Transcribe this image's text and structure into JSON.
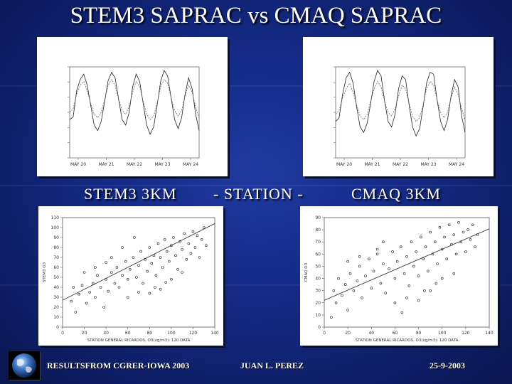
{
  "slide": {
    "title": "STEM3 SAPRAC vs CMAQ SAPRAC",
    "label_left": "STEM3 3KM",
    "label_center": "- STATION -",
    "label_right": "CMAQ 3KM"
  },
  "footer": {
    "left": "RESULTSFROM CGRER-IOWA 2003",
    "center": "JUAN L. PEREZ",
    "right": "25-9-2003"
  },
  "icons": {
    "logo": "earth-globe-icon"
  },
  "colors": {
    "background": "#142a86",
    "text": "#ffffff",
    "panel": "#ffffff",
    "plot_ink": "#333333"
  },
  "chart_data": [
    {
      "type": "line",
      "panel": "top-left",
      "x_ticks": [
        "MAY 20",
        "MAY 21",
        "MAY 22",
        "MAY 23",
        "MAY 24"
      ],
      "series": [
        {
          "values": [
            42,
            45,
            74,
            86,
            92,
            80,
            58,
            36,
            30,
            40,
            62,
            85,
            94,
            88,
            64,
            42,
            36,
            50,
            78,
            92,
            84,
            60,
            36,
            26,
            34,
            58,
            84,
            96,
            90,
            66,
            42,
            32,
            44,
            70,
            88,
            76,
            48,
            30
          ]
        },
        {
          "values": [
            50,
            54,
            70,
            80,
            84,
            74,
            60,
            48,
            44,
            50,
            64,
            80,
            86,
            80,
            64,
            52,
            48,
            56,
            72,
            84,
            78,
            62,
            48,
            42,
            46,
            60,
            78,
            86,
            82,
            66,
            52,
            46,
            52,
            68,
            80,
            72,
            56,
            44
          ]
        }
      ]
    },
    {
      "type": "line",
      "panel": "top-right",
      "x_ticks": [
        "MAY 20",
        "MAY 21",
        "MAY 22",
        "MAY 23",
        "MAY 24"
      ],
      "series": [
        {
          "values": [
            40,
            44,
            70,
            88,
            94,
            82,
            56,
            34,
            28,
            38,
            60,
            84,
            96,
            90,
            62,
            40,
            34,
            48,
            76,
            90,
            86,
            58,
            34,
            24,
            32,
            56,
            82,
            94,
            92,
            64,
            40,
            30,
            42,
            68,
            86,
            78,
            46,
            28
          ]
        },
        {
          "values": [
            48,
            52,
            66,
            76,
            82,
            72,
            58,
            46,
            42,
            48,
            62,
            76,
            84,
            78,
            62,
            50,
            46,
            54,
            68,
            80,
            76,
            60,
            46,
            40,
            44,
            58,
            76,
            84,
            80,
            64,
            50,
            44,
            50,
            66,
            78,
            70,
            54,
            42
          ]
        }
      ]
    },
    {
      "type": "scatter",
      "panel": "bottom-left",
      "xlabel": "STATION GENERAL RICARDOS, O3(ug/m3): 120 DATA",
      "ylabel": "STEM3 O3",
      "x_ticks": [
        "0",
        "20",
        "40",
        "60",
        "80",
        "100",
        "120",
        "140"
      ],
      "y_ticks": [
        "0",
        "10",
        "20",
        "30",
        "40",
        "50",
        "60",
        "70",
        "80",
        "90",
        "100",
        "110"
      ],
      "xlim": [
        0,
        140
      ],
      "ylim": [
        0,
        110
      ],
      "fit": {
        "slope": 0.55,
        "intercept": 27.0
      },
      "points": [
        [
          8,
          26
        ],
        [
          10,
          40
        ],
        [
          12,
          15
        ],
        [
          15,
          33
        ],
        [
          18,
          42
        ],
        [
          22,
          24
        ],
        [
          25,
          35
        ],
        [
          28,
          44
        ],
        [
          30,
          30
        ],
        [
          32,
          52
        ],
        [
          35,
          40
        ],
        [
          38,
          20
        ],
        [
          40,
          48
        ],
        [
          42,
          36
        ],
        [
          45,
          55
        ],
        [
          48,
          44
        ],
        [
          50,
          60
        ],
        [
          52,
          40
        ],
        [
          55,
          52
        ],
        [
          58,
          66
        ],
        [
          60,
          48
        ],
        [
          62,
          58
        ],
        [
          65,
          70
        ],
        [
          68,
          50
        ],
        [
          70,
          62
        ],
        [
          72,
          76
        ],
        [
          74,
          44
        ],
        [
          76,
          68
        ],
        [
          78,
          56
        ],
        [
          80,
          80
        ],
        [
          82,
          64
        ],
        [
          84,
          72
        ],
        [
          86,
          52
        ],
        [
          88,
          84
        ],
        [
          90,
          70
        ],
        [
          92,
          60
        ],
        [
          94,
          88
        ],
        [
          96,
          76
        ],
        [
          98,
          66
        ],
        [
          100,
          82
        ],
        [
          102,
          90
        ],
        [
          104,
          72
        ],
        [
          106,
          58
        ],
        [
          108,
          86
        ],
        [
          110,
          78
        ],
        [
          112,
          94
        ],
        [
          114,
          68
        ],
        [
          116,
          84
        ],
        [
          118,
          74
        ],
        [
          120,
          96
        ],
        [
          122,
          80
        ],
        [
          124,
          92
        ],
        [
          126,
          70
        ],
        [
          128,
          88
        ],
        [
          130,
          100
        ],
        [
          132,
          82
        ],
        [
          60,
          30
        ],
        [
          70,
          35
        ],
        [
          85,
          40
        ],
        [
          95,
          45
        ],
        [
          55,
          80
        ],
        [
          45,
          70
        ],
        [
          40,
          65
        ],
        [
          30,
          60
        ],
        [
          20,
          55
        ],
        [
          110,
          55
        ],
        [
          100,
          48
        ],
        [
          90,
          38
        ],
        [
          80,
          34
        ],
        [
          66,
          90
        ]
      ]
    },
    {
      "type": "scatter",
      "panel": "bottom-right",
      "xlabel": "STATION GENERAL RICARDOS, O3(ug/m3): 120 DATA",
      "ylabel": "CMAQ O3",
      "x_ticks": [
        "0",
        "20",
        "40",
        "60",
        "80",
        "100",
        "120",
        "140"
      ],
      "y_ticks": [
        "0",
        "10",
        "20",
        "30",
        "40",
        "50",
        "60",
        "70",
        "80",
        "90"
      ],
      "xlim": [
        0,
        140
      ],
      "ylim": [
        0,
        90
      ],
      "fit": {
        "slope": 0.42,
        "intercept": 22.0
      },
      "points": [
        [
          6,
          8
        ],
        [
          8,
          30
        ],
        [
          10,
          20
        ],
        [
          12,
          40
        ],
        [
          15,
          26
        ],
        [
          18,
          35
        ],
        [
          20,
          14
        ],
        [
          22,
          44
        ],
        [
          25,
          30
        ],
        [
          28,
          38
        ],
        [
          30,
          50
        ],
        [
          32,
          24
        ],
        [
          35,
          42
        ],
        [
          38,
          56
        ],
        [
          40,
          32
        ],
        [
          42,
          46
        ],
        [
          45,
          60
        ],
        [
          48,
          36
        ],
        [
          50,
          52
        ],
        [
          52,
          28
        ],
        [
          55,
          48
        ],
        [
          58,
          62
        ],
        [
          60,
          40
        ],
        [
          62,
          54
        ],
        [
          65,
          66
        ],
        [
          68,
          44
        ],
        [
          70,
          58
        ],
        [
          72,
          34
        ],
        [
          74,
          70
        ],
        [
          76,
          50
        ],
        [
          78,
          62
        ],
        [
          80,
          42
        ],
        [
          82,
          74
        ],
        [
          84,
          56
        ],
        [
          86,
          66
        ],
        [
          88,
          46
        ],
        [
          90,
          78
        ],
        [
          92,
          60
        ],
        [
          94,
          70
        ],
        [
          96,
          52
        ],
        [
          98,
          82
        ],
        [
          100,
          64
        ],
        [
          102,
          74
        ],
        [
          104,
          56
        ],
        [
          106,
          84
        ],
        [
          108,
          68
        ],
        [
          110,
          76
        ],
        [
          112,
          60
        ],
        [
          114,
          86
        ],
        [
          116,
          70
        ],
        [
          118,
          78
        ],
        [
          120,
          62
        ],
        [
          122,
          80
        ],
        [
          124,
          72
        ],
        [
          126,
          84
        ],
        [
          128,
          66
        ],
        [
          130,
          76
        ],
        [
          60,
          20
        ],
        [
          70,
          24
        ],
        [
          85,
          30
        ],
        [
          95,
          36
        ],
        [
          50,
          70
        ],
        [
          45,
          64
        ],
        [
          30,
          58
        ],
        [
          20,
          54
        ],
        [
          110,
          44
        ],
        [
          100,
          40
        ],
        [
          90,
          30
        ],
        [
          80,
          22
        ],
        [
          66,
          12
        ]
      ]
    }
  ]
}
